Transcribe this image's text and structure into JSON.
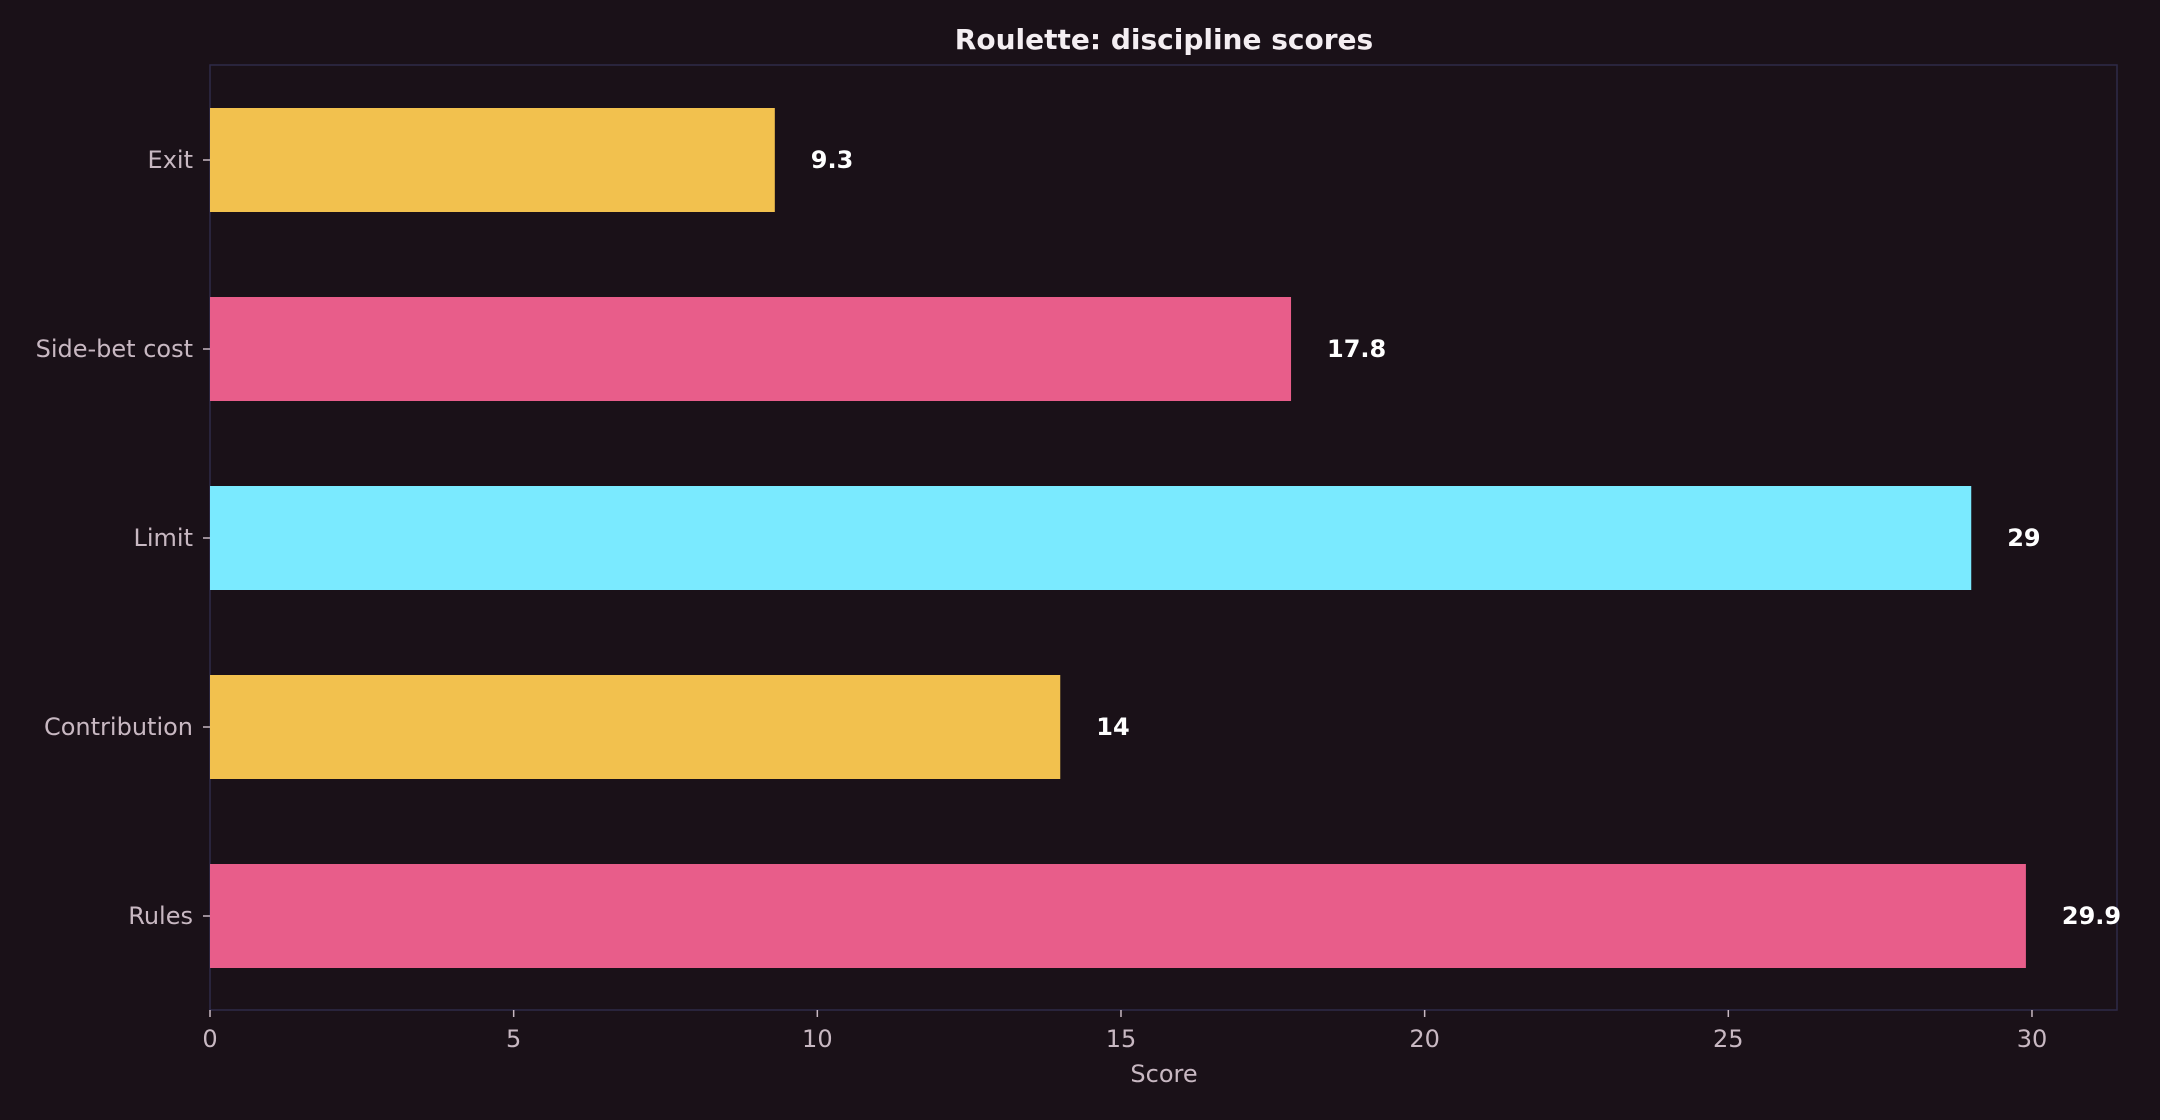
{
  "chart_data": {
    "type": "bar",
    "orientation": "horizontal",
    "title": "Roulette: discipline scores",
    "xlabel": "Score",
    "ylabel": "",
    "categories": [
      "Exit",
      "Side-bet cost",
      "Limit",
      "Contribution",
      "Rules"
    ],
    "values": [
      9.3,
      17.8,
      29,
      14,
      29.9
    ],
    "value_labels": [
      "9.3",
      "17.8",
      "29",
      "14",
      "29.9"
    ],
    "bar_colors": [
      "#f2c14e",
      "#e85d8a",
      "#7aeaff",
      "#f2c14e",
      "#e85d8a"
    ],
    "xlim": [
      0,
      31.4
    ],
    "xticks": [
      0,
      5,
      10,
      15,
      20,
      25,
      30
    ],
    "xtick_labels": [
      "0",
      "5",
      "10",
      "15",
      "20",
      "25",
      "30"
    ],
    "grid": false,
    "legend": "none"
  },
  "colors": {
    "background": "#1a1118",
    "axes_frame": "#2e2a48",
    "tick_label": "#c8b8c2",
    "title": "#f4eef2",
    "value_label": "#ffffff"
  }
}
